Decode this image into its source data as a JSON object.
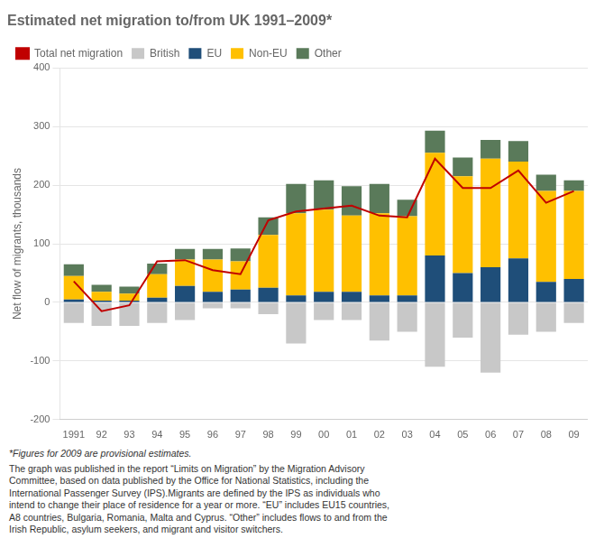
{
  "chart_data": {
    "type": "bar",
    "title": "Estimated net migration to/from UK 1991–2009*",
    "y_label": "Net flow of migrants, thousands",
    "categories": [
      "1991",
      "92",
      "93",
      "94",
      "95",
      "96",
      "97",
      "98",
      "99",
      "00",
      "01",
      "02",
      "03",
      "04",
      "05",
      "06",
      "07",
      "08",
      "09"
    ],
    "stacked": true,
    "series": [
      {
        "name": "British",
        "color": "#c8c8c8",
        "values": [
          -35,
          -40,
          -40,
          -35,
          -30,
          -10,
          -10,
          -20,
          -70,
          -30,
          -30,
          -65,
          -50,
          -110,
          -60,
          -120,
          -55,
          -50,
          -35
        ]
      },
      {
        "name": "EU",
        "color": "#1f4e79",
        "values": [
          5,
          3,
          3,
          8,
          28,
          18,
          22,
          25,
          12,
          18,
          18,
          12,
          12,
          80,
          50,
          60,
          75,
          35,
          40
        ]
      },
      {
        "name": "Non-EU",
        "color": "#ffc000",
        "values": [
          40,
          15,
          12,
          40,
          45,
          55,
          48,
          90,
          140,
          140,
          130,
          140,
          135,
          175,
          165,
          185,
          165,
          155,
          150
        ]
      },
      {
        "name": "Other",
        "color": "#5a7a5a",
        "values": [
          20,
          12,
          12,
          18,
          18,
          18,
          22,
          30,
          50,
          50,
          50,
          50,
          28,
          38,
          32,
          32,
          35,
          28,
          18
        ]
      },
      {
        "name": "Total net migration",
        "type": "line",
        "color": "#c00000",
        "values": [
          36,
          -15,
          -5,
          70,
          72,
          55,
          48,
          140,
          155,
          160,
          165,
          148,
          145,
          245,
          195,
          195,
          225,
          170,
          190
        ]
      }
    ],
    "ylim": [
      -200,
      400
    ],
    "yticks": [
      -200,
      -100,
      0,
      100,
      200,
      300,
      400
    ],
    "grid": true,
    "legend": "top",
    "annotations": [
      "*Figures for 2009 are provisional estimates.",
      "The graph was published in the report “Limits on Migration” by the Migration Advisory\nCommittee, based on data published by the Office for National Statistics, including the\nInternational Passenger Survey (IPS).Migrants are defined by the IPS as individuals who\nintend to change their place of residence for a year or more. “EU” includes EU15 countries,\nA8 countries, Bulgaria, Romania, Malta and Cyprus. “Other” includes flows to and from the\nIrish Republic, asylum seekers, and migrant and visitor switchers."
    ]
  }
}
